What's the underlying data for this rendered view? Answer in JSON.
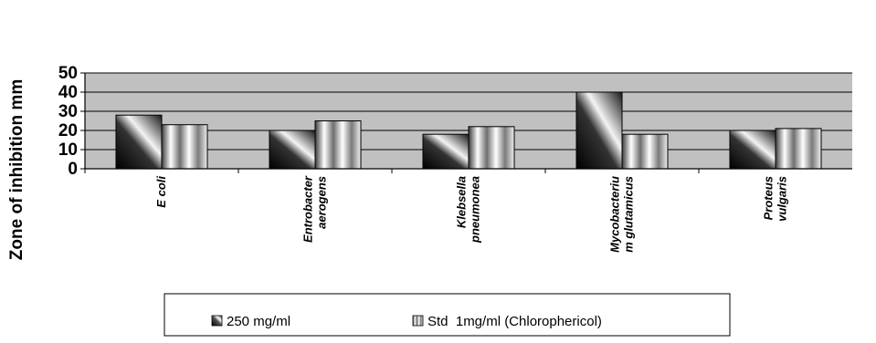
{
  "chart_data": {
    "type": "bar",
    "ylabel": "Zone of inhibition mm",
    "xlabel": "",
    "ylim": [
      0,
      50
    ],
    "yticks": [
      "0",
      "10",
      "20",
      "30",
      "40",
      "50"
    ],
    "grid": true,
    "legend_position": "bottom",
    "categories": [
      [
        "E coli"
      ],
      [
        "Entrobacter",
        "aerogens"
      ],
      [
        "Klebsella",
        "pneumonea"
      ],
      [
        "Mycobacteriu",
        "m glutamicus"
      ],
      [
        "Proteus",
        "vulgaris"
      ]
    ],
    "series": [
      {
        "name": "250 mg/ml",
        "values": [
          28,
          20,
          18,
          40,
          20
        ]
      },
      {
        "name": "Std  1mg/ml (Chlorophericol)",
        "values": [
          23,
          25,
          22,
          18,
          21
        ]
      }
    ],
    "colors": {
      "plot_background": "#c0c0c0",
      "gridline": "#000000",
      "series1_dark": "#1a1a1a",
      "series1_light": "#ffffff",
      "series2_stripe_dark": "#5a5a5a",
      "series2_stripe_light": "#ffffff"
    }
  }
}
